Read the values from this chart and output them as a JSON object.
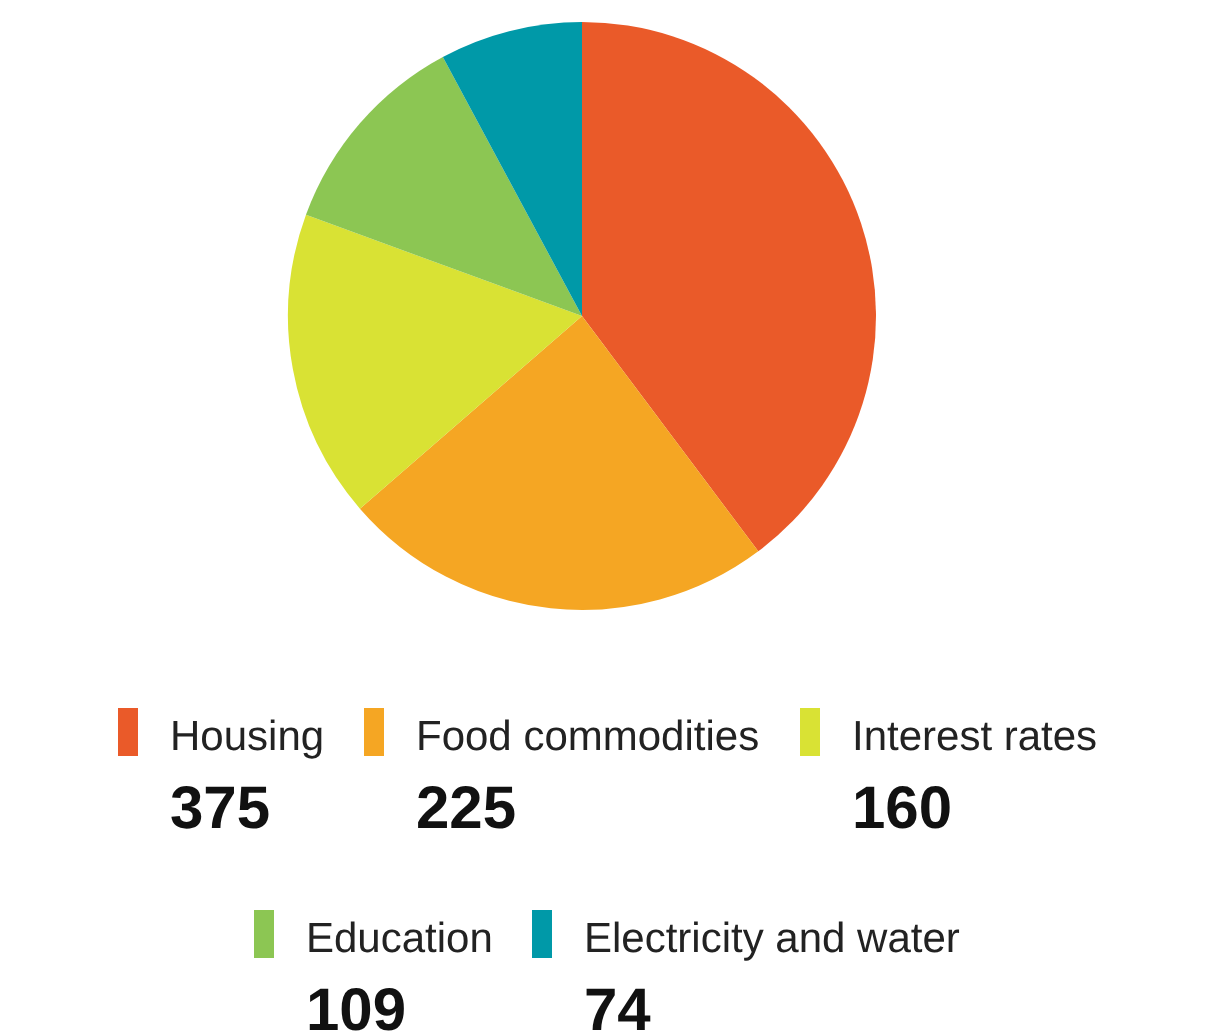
{
  "chart_data": {
    "type": "pie",
    "categories": [
      "Housing",
      "Food commodities",
      "Interest rates",
      "Education",
      "Electricity and water"
    ],
    "values": [
      375,
      225,
      160,
      109,
      74
    ],
    "colors": [
      "#ea5a29",
      "#f5a623",
      "#d9e234",
      "#8cc653",
      "#0099a8"
    ],
    "legend": "bottom",
    "data_labels": true
  }
}
